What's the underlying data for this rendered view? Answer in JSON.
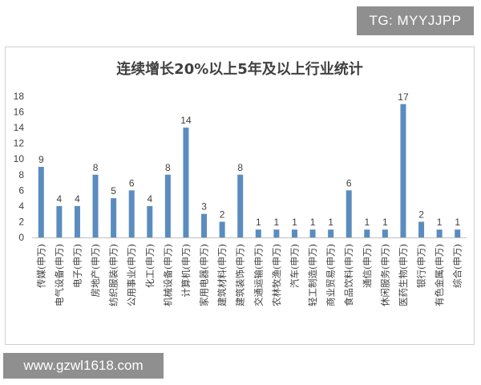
{
  "watermark_top": "TG: MYYJJPP",
  "watermark_bottom": "www.gzwl1618.com",
  "chart_data": {
    "type": "bar",
    "title": "连续增长20%以上5年及以上行业统计",
    "categories": [
      "传媒(申万)",
      "电气设备(申万)",
      "电子(申万)",
      "房地产(申万)",
      "纺织服装(申万)",
      "公用事业(申万)",
      "化工(申万)",
      "机械设备(申万)",
      "计算机(申万)",
      "家用电器(申万)",
      "建筑材料(申万)",
      "建筑装饰(申万)",
      "交通运输(申万)",
      "农林牧渔(申万)",
      "汽车(申万)",
      "轻工制造(申万)",
      "商业贸易(申万)",
      "食品饮料(申万)",
      "通信(申万)",
      "休闲服务(申万)",
      "医药生物(申万)",
      "银行(申万)",
      "有色金属(申万)",
      "综合(申万)"
    ],
    "values": [
      9,
      4,
      4,
      8,
      5,
      6,
      4,
      8,
      14,
      3,
      2,
      8,
      1,
      1,
      1,
      1,
      1,
      6,
      1,
      1,
      17,
      2,
      1,
      1
    ],
    "yticks": [
      0,
      2,
      4,
      6,
      8,
      10,
      12,
      14,
      16,
      18
    ],
    "ylim": [
      0,
      18
    ],
    "bar_color": "#5b8cc0",
    "grid": false,
    "legend": "none"
  }
}
